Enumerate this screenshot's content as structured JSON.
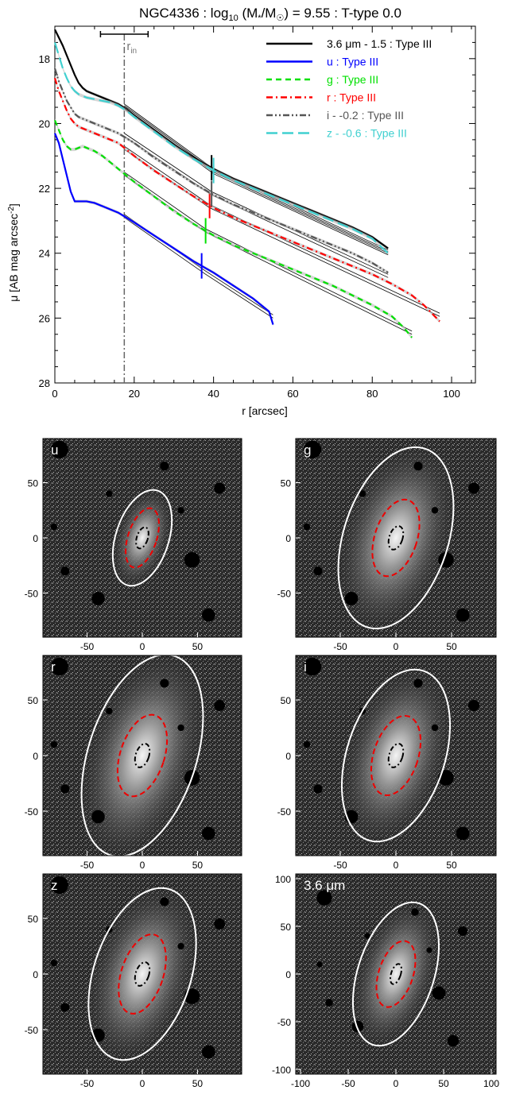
{
  "chart_data": [
    {
      "type": "line",
      "title": "NGC4336 : log10 (M*/M☉) = 9.55 : T-type 0.0",
      "title_parts": {
        "pre": "NGC4336 : log",
        "sub": "10",
        "mid": " (M",
        "sub2": "*",
        "mid2": "/M",
        "sub3": "☉",
        "post": ") = 9.55 : T-type 0.0"
      },
      "xlabel": "r [arcsec]",
      "ylabel": "μ [AB mag arcsec",
      "ylabel_sup": "-2",
      "ylabel_close": "]",
      "xlim": [
        0,
        106
      ],
      "ylim": [
        28,
        17
      ],
      "y_inverted": true,
      "x_ticks": [
        0,
        20,
        40,
        60,
        80,
        100
      ],
      "y_ticks": [
        18,
        20,
        22,
        24,
        26,
        28
      ],
      "r_in": 17.5,
      "r_in_label": "r",
      "r_in_sub": "in",
      "r_in_errbar": [
        11.5,
        23.5
      ],
      "legend_position": "top-right",
      "series": [
        {
          "name": "3.6 μm - 1.5 : Type III",
          "color": "#000000",
          "style": "solid",
          "x": [
            0,
            1,
            2,
            3,
            4,
            5,
            6,
            7,
            8,
            10,
            12,
            14,
            16,
            18,
            20,
            25,
            30,
            35,
            40,
            45,
            50,
            55,
            60,
            65,
            70,
            75,
            80,
            84
          ],
          "y": [
            17.1,
            17.35,
            17.6,
            17.9,
            18.2,
            18.5,
            18.75,
            18.9,
            19.0,
            19.1,
            19.2,
            19.3,
            19.4,
            19.55,
            19.75,
            20.2,
            20.65,
            21.05,
            21.4,
            21.7,
            21.95,
            22.2,
            22.45,
            22.7,
            22.95,
            23.2,
            23.5,
            23.85
          ],
          "fit": [
            [
              17.5,
              19.45
            ],
            [
              40,
              21.45
            ],
            [
              84,
              23.95
            ]
          ],
          "break_r": 39.5
        },
        {
          "name": "u : Type III",
          "color": "#0000ff",
          "style": "solid",
          "x": [
            0,
            1,
            2,
            3,
            4,
            5,
            6,
            7,
            8,
            10,
            12,
            14,
            16,
            18,
            20,
            25,
            30,
            35,
            40,
            45,
            50,
            52,
            54,
            55
          ],
          "y": [
            20.3,
            20.6,
            21.1,
            21.6,
            22.1,
            22.4,
            22.4,
            22.4,
            22.4,
            22.45,
            22.55,
            22.65,
            22.75,
            22.9,
            23.05,
            23.45,
            23.85,
            24.25,
            24.6,
            25.0,
            25.4,
            25.6,
            25.8,
            26.2
          ],
          "fit": [
            [
              17.5,
              22.85
            ],
            [
              38,
              24.6
            ],
            [
              55,
              25.95
            ]
          ],
          "break_r": 37.0
        },
        {
          "name": "g : Type III",
          "color": "#00e000",
          "style": "dash",
          "x": [
            0,
            1,
            2,
            3,
            4,
            5,
            6,
            7,
            8,
            10,
            12,
            14,
            16,
            18,
            20,
            25,
            30,
            35,
            40,
            45,
            50,
            55,
            60,
            65,
            70,
            75,
            80,
            85,
            88,
            90
          ],
          "y": [
            19.9,
            20.2,
            20.5,
            20.7,
            20.8,
            20.8,
            20.75,
            20.7,
            20.75,
            20.85,
            21.0,
            21.2,
            21.4,
            21.6,
            21.8,
            22.25,
            22.7,
            23.1,
            23.45,
            23.75,
            24.0,
            24.25,
            24.5,
            24.75,
            25.0,
            25.3,
            25.6,
            25.95,
            26.3,
            26.6
          ],
          "fit": [
            [
              17.5,
              21.55
            ],
            [
              38,
              23.3
            ],
            [
              90,
              26.45
            ]
          ],
          "break_r": 38.0
        },
        {
          "name": "r : Type III",
          "color": "#ff0000",
          "style": "dashdot",
          "x": [
            0,
            1,
            2,
            3,
            4,
            5,
            6,
            7,
            8,
            10,
            12,
            14,
            16,
            18,
            20,
            25,
            30,
            35,
            40,
            45,
            50,
            55,
            60,
            65,
            70,
            75,
            80,
            85,
            90,
            93,
            95,
            97
          ],
          "y": [
            18.6,
            19.0,
            19.3,
            19.6,
            19.85,
            20.0,
            20.1,
            20.15,
            20.2,
            20.3,
            20.4,
            20.5,
            20.6,
            20.8,
            21.0,
            21.45,
            21.85,
            22.25,
            22.6,
            22.9,
            23.15,
            23.4,
            23.65,
            23.9,
            24.15,
            24.4,
            24.65,
            24.95,
            25.3,
            25.6,
            25.85,
            26.1
          ],
          "fit": [
            [
              17.5,
              20.75
            ],
            [
              39,
              22.55
            ],
            [
              97,
              25.9
            ]
          ],
          "break_r": 39.0
        },
        {
          "name": "i - -0.2 : Type III",
          "color": "#555555",
          "style": "dashdotdot",
          "x": [
            0,
            1,
            2,
            3,
            4,
            5,
            6,
            7,
            8,
            10,
            12,
            14,
            16,
            18,
            20,
            25,
            30,
            35,
            40,
            45,
            50,
            55,
            60,
            65,
            70,
            75,
            80,
            84
          ],
          "y": [
            18.3,
            18.7,
            19.0,
            19.3,
            19.5,
            19.7,
            19.8,
            19.85,
            19.9,
            20.0,
            20.1,
            20.2,
            20.3,
            20.45,
            20.6,
            21.05,
            21.45,
            21.85,
            22.2,
            22.5,
            22.75,
            23.0,
            23.25,
            23.5,
            23.75,
            24.0,
            24.3,
            24.6
          ],
          "fit": [
            [
              17.5,
              20.35
            ],
            [
              39.5,
              22.15
            ],
            [
              84,
              24.7
            ]
          ],
          "break_r": 39.5
        },
        {
          "name": "z - -0.6 : Type III",
          "color": "#40d0d0",
          "style": "longdash",
          "x": [
            0,
            1,
            2,
            3,
            4,
            5,
            6,
            7,
            8,
            10,
            12,
            14,
            16,
            18,
            20,
            25,
            30,
            35,
            40,
            45,
            50,
            55,
            60,
            65,
            70,
            75,
            80,
            84
          ],
          "y": [
            17.5,
            17.9,
            18.3,
            18.6,
            18.85,
            19.0,
            19.1,
            19.15,
            19.2,
            19.25,
            19.3,
            19.35,
            19.45,
            19.6,
            19.8,
            20.25,
            20.7,
            21.1,
            21.45,
            21.75,
            22.0,
            22.25,
            22.5,
            22.75,
            23.0,
            23.25,
            23.55,
            24.0
          ],
          "fit": [
            [
              17.5,
              19.5
            ],
            [
              40,
              21.5
            ],
            [
              84,
              24.0
            ]
          ],
          "break_r": 40.0
        }
      ]
    },
    {
      "type": "heatmap",
      "panels": [
        {
          "label": "u",
          "xlim": [
            -90,
            90
          ],
          "ylim": [
            -90,
            90
          ],
          "x_ticks": [
            -50,
            0,
            50
          ],
          "y_ticks": [
            50,
            0,
            -50
          ],
          "outer": [
            24,
            45
          ],
          "red": [
            13,
            28
          ],
          "black": [
            5,
            10
          ],
          "show_xticks": true
        },
        {
          "label": "g",
          "xlim": [
            -90,
            90
          ],
          "ylim": [
            -90,
            90
          ],
          "x_ticks": [
            -50,
            0,
            50
          ],
          "y_ticks": [
            50,
            0,
            -50
          ],
          "outer": [
            47,
            85
          ],
          "red": [
            19,
            36
          ],
          "black": [
            6,
            11
          ],
          "show_xticks": true
        },
        {
          "label": "r",
          "xlim": [
            -90,
            90
          ],
          "ylim": [
            -90,
            90
          ],
          "x_ticks": [
            -50,
            0,
            50
          ],
          "y_ticks": [
            50,
            0,
            -50
          ],
          "outer": [
            49,
            94
          ],
          "red": [
            20,
            38
          ],
          "black": [
            6,
            11
          ],
          "show_xticks": true
        },
        {
          "label": "i",
          "xlim": [
            -90,
            90
          ],
          "ylim": [
            -90,
            90
          ],
          "x_ticks": [
            -50,
            0,
            50
          ],
          "y_ticks": [
            50,
            0,
            -50
          ],
          "outer": [
            44,
            80
          ],
          "red": [
            20,
            37
          ],
          "black": [
            6,
            11
          ],
          "show_xticks": true
        },
        {
          "label": "z",
          "xlim": [
            -90,
            90
          ],
          "ylim": [
            -90,
            90
          ],
          "x_ticks": [
            -50,
            0,
            50
          ],
          "y_ticks": [
            50,
            0,
            -50
          ],
          "outer": [
            44,
            80
          ],
          "red": [
            19,
            37
          ],
          "black": [
            6,
            11
          ],
          "show_xticks": true
        },
        {
          "label": "3.6 μm",
          "xlim": [
            -105,
            105
          ],
          "ylim": [
            -105,
            105
          ],
          "x_ticks": [
            -100,
            -50,
            0,
            50,
            100
          ],
          "y_ticks": [
            100,
            50,
            0,
            -50,
            -100
          ],
          "outer": [
            40,
            78
          ],
          "red": [
            18,
            36
          ],
          "black": [
            5,
            11
          ],
          "show_xticks": true
        }
      ],
      "x_tick_labels_main": [
        "-50",
        "0",
        "50"
      ],
      "y_tick_labels_main": [
        "50",
        "0",
        "-50"
      ],
      "x_tick_labels_36": [
        "-100",
        "-50",
        "0",
        "50",
        "100"
      ],
      "y_tick_labels_36": [
        "100",
        "50",
        "0",
        "-50",
        "-100"
      ]
    }
  ]
}
